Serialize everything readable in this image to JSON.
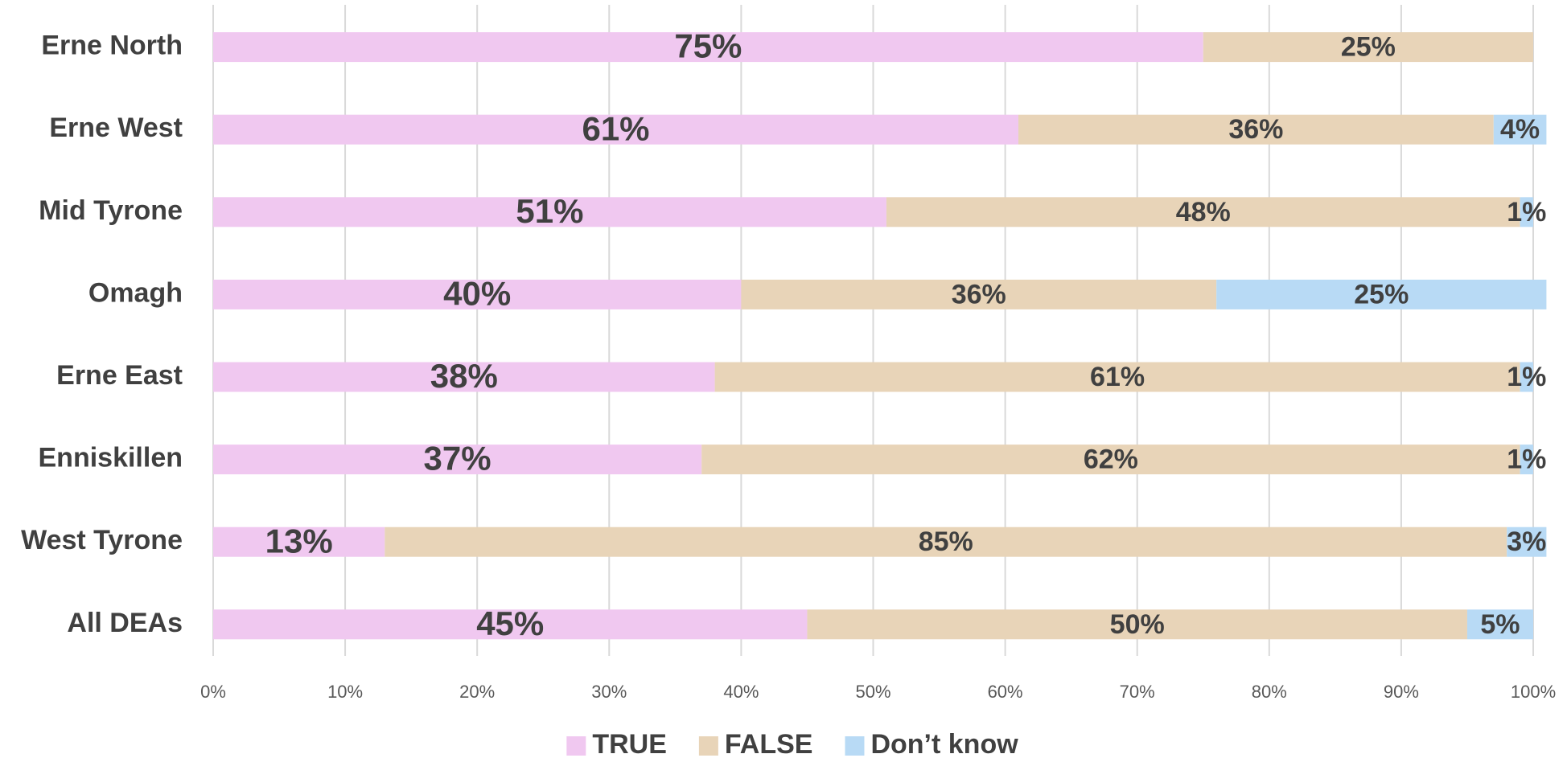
{
  "chart_data": {
    "type": "stacked-bar-horizontal",
    "categories": [
      "Erne North",
      "Erne West",
      "Mid Tyrone",
      "Omagh",
      "Erne East",
      "Enniskillen",
      "West Tyrone",
      "All DEAs"
    ],
    "series": [
      {
        "name": "TRUE",
        "color": "#f0c8f0",
        "values": [
          75,
          61,
          51,
          40,
          38,
          37,
          13,
          45
        ],
        "value_labels": [
          "75%",
          "61%",
          "51%",
          "40%",
          "38%",
          "37%",
          "13%",
          "45%"
        ]
      },
      {
        "name": "FALSE",
        "color": "#e8d4b8",
        "values": [
          25,
          36,
          48,
          36,
          61,
          62,
          85,
          50
        ],
        "value_labels": [
          "25%",
          "36%",
          "48%",
          "36%",
          "61%",
          "62%",
          "85%",
          "50%"
        ]
      },
      {
        "name": "Don’t know",
        "color": "#b8daf5",
        "values": [
          null,
          4,
          1,
          25,
          1,
          1,
          3,
          5
        ],
        "value_labels": [
          null,
          "4%",
          "1%",
          "25%",
          "1%",
          "1%",
          "3%",
          "5%"
        ]
      }
    ],
    "xlim": [
      0,
      100
    ],
    "xticks": [
      {
        "value": 0,
        "label": "0%"
      },
      {
        "value": 10,
        "label": "10%"
      },
      {
        "value": 20,
        "label": "20%"
      },
      {
        "value": 30,
        "label": "30%"
      },
      {
        "value": 40,
        "label": "40%"
      },
      {
        "value": 50,
        "label": "50%"
      },
      {
        "value": 60,
        "label": "60%"
      },
      {
        "value": 70,
        "label": "70%"
      },
      {
        "value": 80,
        "label": "80%"
      },
      {
        "value": 90,
        "label": "90%"
      },
      {
        "value": 100,
        "label": "100%"
      }
    ],
    "grid": true,
    "legend": "bottom"
  }
}
